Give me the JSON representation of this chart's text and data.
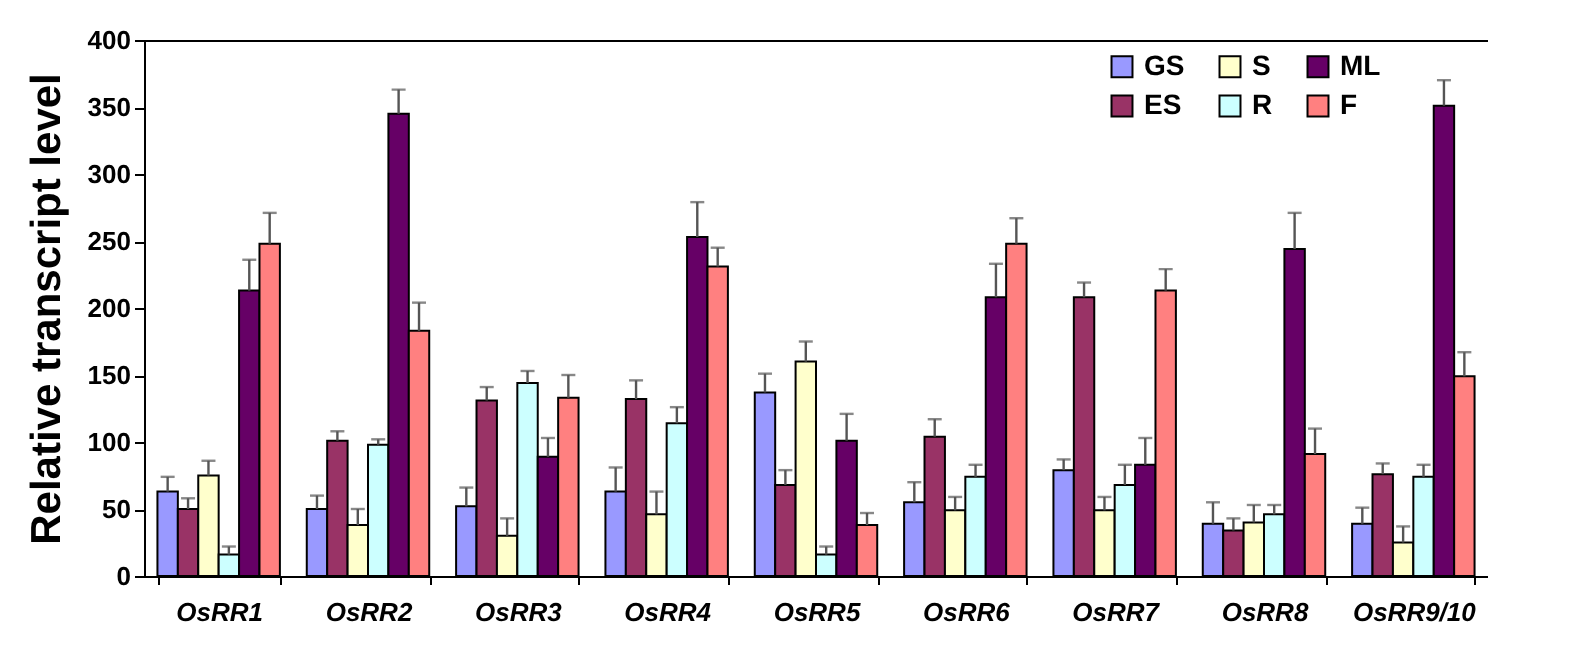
{
  "chart_data": {
    "type": "bar",
    "ylabel": "Relative transcript level",
    "categories": [
      "OsRR1",
      "OsRR2",
      "OsRR3",
      "OsRR4",
      "OsRR5",
      "OsRR6",
      "OsRR7",
      "OsRR8",
      "OsRR9/10"
    ],
    "series": [
      {
        "name": "GS",
        "color": "#9999ff",
        "values": [
          63,
          50,
          52,
          63,
          137,
          55,
          79,
          39,
          39
        ],
        "errors": [
          [
            63,
            74
          ],
          [
            50,
            60
          ],
          [
            52,
            66
          ],
          [
            63,
            81
          ],
          [
            137,
            151
          ],
          [
            55,
            70
          ],
          [
            79,
            87
          ],
          [
            39,
            55
          ],
          [
            39,
            51
          ]
        ]
      },
      {
        "name": "ES",
        "color": "#993366",
        "values": [
          50,
          101,
          131,
          132,
          68,
          104,
          208,
          34,
          76
        ],
        "errors": [
          [
            50,
            58
          ],
          [
            101,
            108
          ],
          [
            131,
            141
          ],
          [
            132,
            146
          ],
          [
            68,
            79
          ],
          [
            104,
            117
          ],
          [
            208,
            219
          ],
          [
            34,
            43
          ],
          [
            76,
            84
          ]
        ]
      },
      {
        "name": "S",
        "color": "#ffffcc",
        "values": [
          75,
          38,
          30,
          46,
          160,
          49,
          49,
          40,
          25
        ],
        "errors": [
          [
            75,
            86
          ],
          [
            38,
            50
          ],
          [
            30,
            43
          ],
          [
            46,
            63
          ],
          [
            160,
            175
          ],
          [
            49,
            59
          ],
          [
            49,
            59
          ],
          [
            40,
            53
          ],
          [
            25,
            37
          ]
        ]
      },
      {
        "name": "R",
        "color": "#ccffff",
        "values": [
          16,
          98,
          144,
          114,
          16,
          74,
          68,
          46,
          74
        ],
        "errors": [
          [
            16,
            22
          ],
          [
            98,
            102
          ],
          [
            144,
            153
          ],
          [
            114,
            126
          ],
          [
            16,
            22
          ],
          [
            74,
            83
          ],
          [
            68,
            83
          ],
          [
            46,
            53
          ],
          [
            74,
            83
          ]
        ]
      },
      {
        "name": "ML",
        "color": "#660066",
        "values": [
          213,
          345,
          89,
          253,
          101,
          208,
          83,
          244,
          351
        ],
        "errors": [
          [
            213,
            236
          ],
          [
            345,
            363
          ],
          [
            89,
            103
          ],
          [
            253,
            279
          ],
          [
            101,
            121
          ],
          [
            208,
            233
          ],
          [
            83,
            103
          ],
          [
            244,
            271
          ],
          [
            351,
            370
          ]
        ]
      },
      {
        "name": "F",
        "color": "#ff8080",
        "values": [
          248,
          183,
          133,
          231,
          38,
          248,
          213,
          91,
          149
        ],
        "errors": [
          [
            248,
            271
          ],
          [
            183,
            204
          ],
          [
            133,
            150
          ],
          [
            231,
            245
          ],
          [
            38,
            47
          ],
          [
            248,
            267
          ],
          [
            213,
            229
          ],
          [
            91,
            110
          ],
          [
            149,
            167
          ]
        ]
      }
    ],
    "ylim": [
      0,
      400
    ],
    "yticks": [
      0,
      50,
      100,
      150,
      200,
      250,
      300,
      350,
      400
    ],
    "grid": false,
    "legend": "top right"
  }
}
